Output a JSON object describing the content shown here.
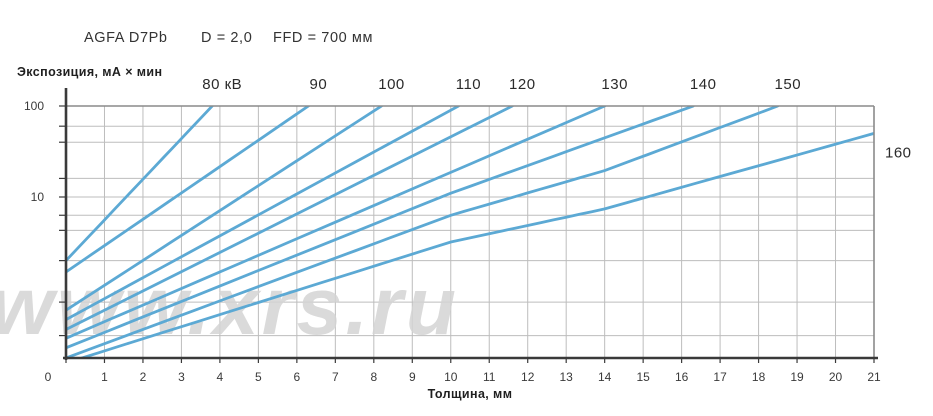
{
  "header": {
    "film": "AGFA D7Pb",
    "density": "D = 2,0",
    "ffd": "FFD = 700 мм"
  },
  "y_axis_title": "Экспозиция, мА × мин",
  "x_axis_title": "Толщина, мм",
  "watermark": "www.xrs.ru",
  "colors": {
    "curve": "#5CA9D4",
    "grid": "#bdbdbd",
    "border": "#8a8a8a",
    "axis": "#3a3a3a",
    "text": "#2b2b2b"
  },
  "chart_data": {
    "type": "line",
    "title": "AGFA D7Pb exposure chart, D = 2,0, FFD = 700 мм",
    "xlabel": "Толщина, мм",
    "ylabel": "Экспозиция, мА × мин",
    "x_range": [
      0,
      21
    ],
    "y_log_range": [
      0.17,
      100
    ],
    "grid": true,
    "x_ticks": [
      0,
      1,
      2,
      3,
      4,
      5,
      6,
      7,
      8,
      9,
      10,
      11,
      12,
      13,
      14,
      15,
      16,
      17,
      18,
      19,
      20,
      21
    ],
    "y_tick_labels": [
      {
        "label": "100",
        "value": 100
      },
      {
        "label": "10",
        "value": 10
      }
    ],
    "origin_label": "0",
    "y_gridline_values": [
      60,
      40,
      16,
      10,
      6.3,
      4.3,
      2,
      0.7,
      0.3
    ],
    "series": [
      {
        "label": "80 кВ",
        "kv": 80,
        "points": [
          [
            0,
            2.0
          ],
          [
            3.8,
            100
          ]
        ]
      },
      {
        "label": "90",
        "kv": 90,
        "points": [
          [
            0,
            1.5
          ],
          [
            6.3,
            100
          ]
        ]
      },
      {
        "label": "100",
        "kv": 100,
        "points": [
          [
            0,
            0.57
          ],
          [
            8.2,
            100
          ]
        ]
      },
      {
        "label": "110",
        "kv": 110,
        "points": [
          [
            0,
            0.45
          ],
          [
            10.2,
            100
          ]
        ]
      },
      {
        "label": "120",
        "kv": 120,
        "points": [
          [
            0,
            0.35
          ],
          [
            11.6,
            100
          ]
        ]
      },
      {
        "label": "130",
        "kv": 130,
        "points": [
          [
            0,
            0.28
          ],
          [
            14.0,
            100
          ]
        ]
      },
      {
        "label": "140",
        "kv": 140,
        "points": [
          [
            0,
            0.22
          ],
          [
            10,
            11
          ],
          [
            16.3,
            100
          ]
        ]
      },
      {
        "label": "150",
        "kv": 150,
        "points": [
          [
            0,
            0.17
          ],
          [
            10,
            6.3
          ],
          [
            14,
            19.5
          ],
          [
            18.5,
            100
          ]
        ]
      },
      {
        "label": "160",
        "kv": 160,
        "points": [
          [
            0,
            0.15
          ],
          [
            10,
            3.2
          ],
          [
            14,
            7.4
          ],
          [
            21,
            50
          ]
        ]
      }
    ],
    "legend_position": "curve-end-labels"
  }
}
